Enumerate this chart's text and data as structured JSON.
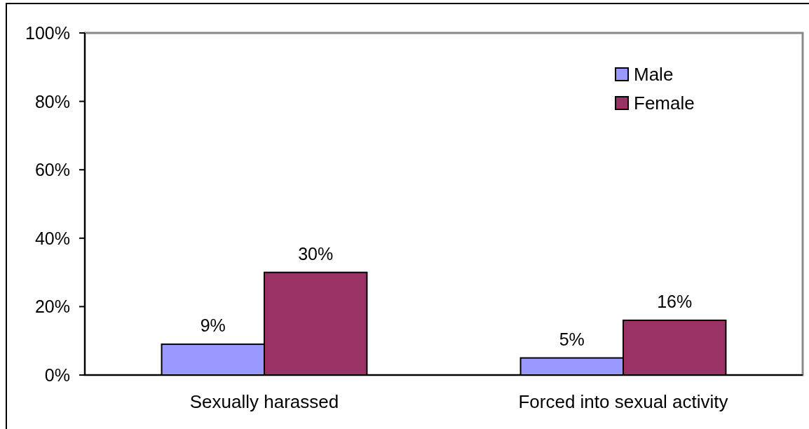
{
  "chart_data": {
    "type": "bar",
    "categories": [
      "Sexually harassed",
      "Forced into sexual activity"
    ],
    "series": [
      {
        "name": "Male",
        "color": "#9999ff",
        "values": [
          9,
          5
        ],
        "value_labels": [
          "9%",
          "5%"
        ]
      },
      {
        "name": "Female",
        "color": "#993366",
        "values": [
          30,
          16
        ],
        "value_labels": [
          "30%",
          "16%"
        ]
      }
    ],
    "ylim": [
      0,
      100
    ],
    "yticks": [
      {
        "value": 0,
        "label": "0%"
      },
      {
        "value": 20,
        "label": "20%"
      },
      {
        "value": 40,
        "label": "40%"
      },
      {
        "value": 60,
        "label": "60%"
      },
      {
        "value": 80,
        "label": "80%"
      },
      {
        "value": 100,
        "label": "100%"
      }
    ],
    "legend": "top right"
  }
}
